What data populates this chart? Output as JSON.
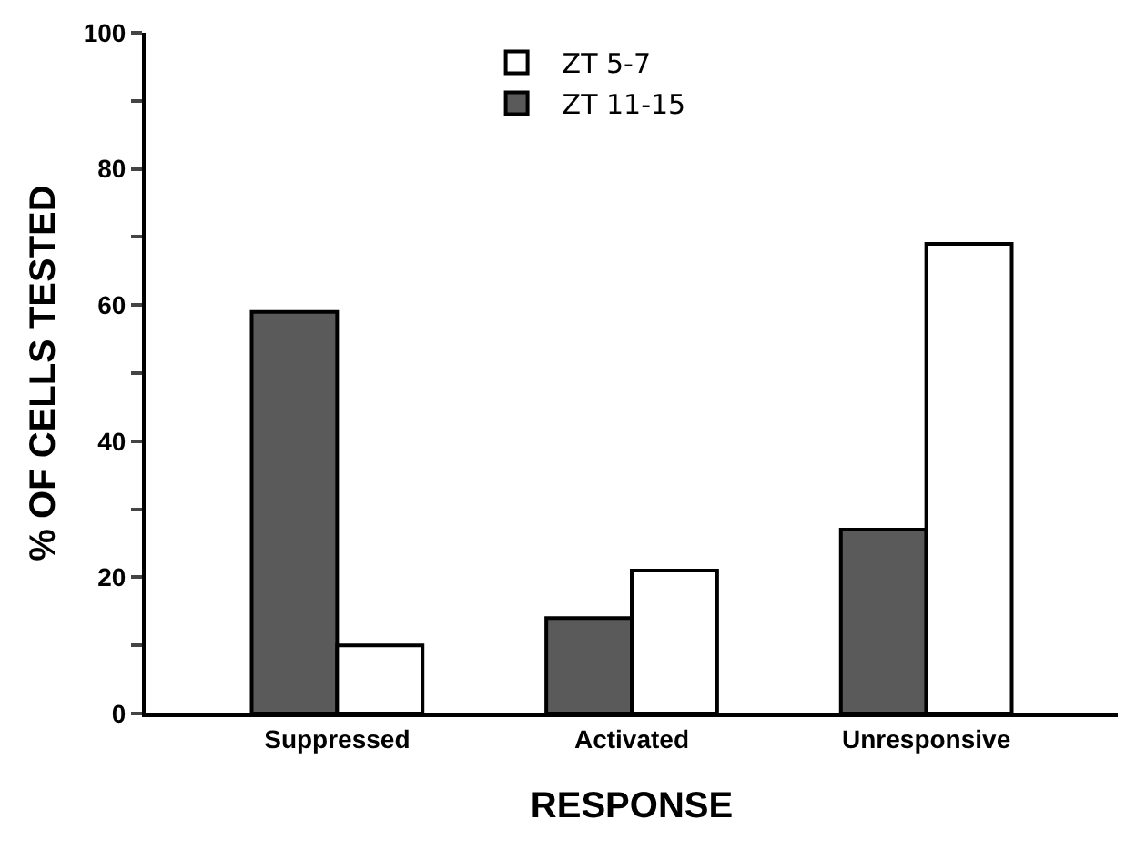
{
  "chart_data": {
    "type": "bar",
    "xlabel": "RESPONSE",
    "ylabel": "% OF CELLS TESTED",
    "categories": [
      "Suppressed",
      "Activated",
      "Unresponsive"
    ],
    "series": [
      {
        "name": "ZT 11-15",
        "color": "#5a5a5a",
        "values": [
          59,
          14,
          27
        ]
      },
      {
        "name": "ZT 5-7",
        "color": "#ffffff",
        "values": [
          10,
          21,
          69
        ]
      }
    ],
    "ylim": [
      0,
      100
    ],
    "yticks": [
      0,
      {
        "value": 10,
        "label": null
      },
      20,
      {
        "value": 30,
        "label": null
      },
      40,
      {
        "value": 50,
        "label": null
      },
      60,
      {
        "value": 70,
        "label": null
      },
      80,
      {
        "value": 90,
        "label": null
      },
      100
    ],
    "legend": "top"
  }
}
